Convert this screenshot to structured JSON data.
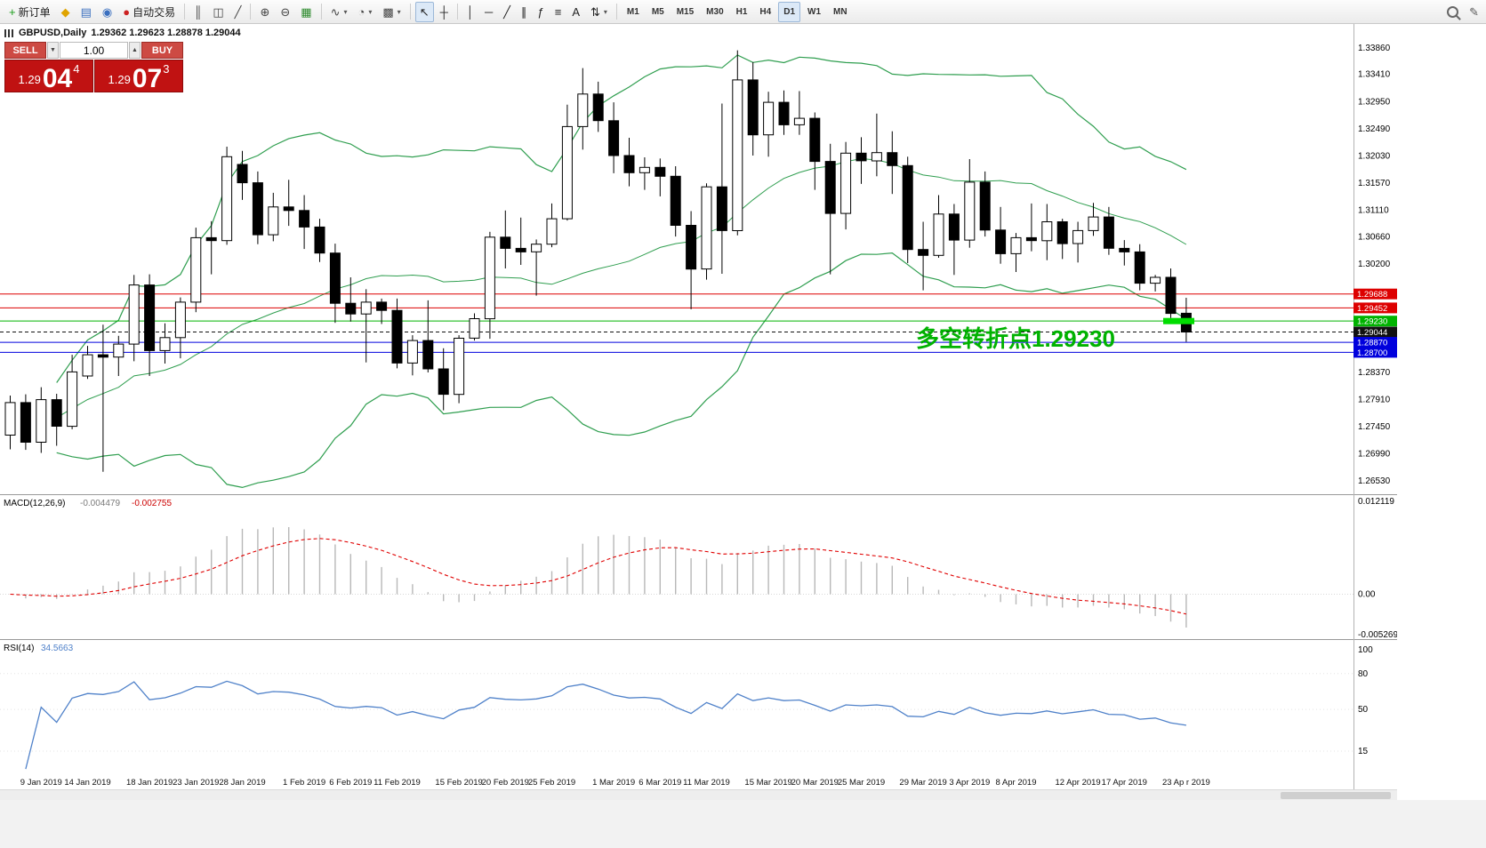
{
  "icons": {
    "spinner_down": "▼",
    "spinner_up": "▲",
    "dropdown": "▾",
    "pencil": "✎"
  },
  "chart": {
    "title_display": "GBPUSD,Daily",
    "ohlc_display": "1.29362 1.29623 1.28878 1.29044"
  },
  "trade_panel": {
    "sell_label": "SELL",
    "buy_label": "BUY",
    "volume": "1.00",
    "sell_price": {
      "base": "1.29",
      "pips": "04",
      "fraction": "4"
    },
    "buy_price": {
      "base": "1.29",
      "pips": "07",
      "fraction": "3"
    }
  },
  "annotation": {
    "text": "多空转折点1.29230",
    "color": "#00b200"
  },
  "toolbar": {
    "groups": [
      {
        "name": "trade",
        "items": [
          {
            "name": "new-order-button",
            "icon": "new-order-icon",
            "glyph": "+",
            "glyph_color": "#1a9c1a",
            "label": "新订单"
          },
          {
            "name": "new-chart-button",
            "icon": "new-chart-icon",
            "glyph": "◆",
            "glyph_color": "#e0a400"
          },
          {
            "name": "profiles-button",
            "icon": "profiles-icon",
            "glyph": "▤",
            "glyph_color": "#3a6fbf"
          },
          {
            "name": "alerts-button",
            "icon": "alert-icon",
            "glyph": "◉",
            "glyph_color": "#3a6fbf"
          },
          {
            "name": "autotrading-button",
            "icon": "autotrading-icon",
            "glyph": "●",
            "glyph_color": "#cc2222",
            "label": "自动交易"
          }
        ]
      },
      {
        "name": "chart-type",
        "items": [
          {
            "name": "bar-chart-button",
            "icon": "bar-chart-icon",
            "glyph": "║",
            "glyph_color": "#444"
          },
          {
            "name": "candlestick-button",
            "icon": "candlestick-icon",
            "glyph": "◫",
            "glyph_color": "#444"
          },
          {
            "name": "line-chart-button",
            "icon": "line-chart-icon",
            "glyph": "╱",
            "glyph_color": "#444"
          }
        ]
      },
      {
        "name": "zoom",
        "items": [
          {
            "name": "zoom-in-button",
            "icon": "zoom-in-icon",
            "glyph": "⊕",
            "glyph_color": "#444"
          },
          {
            "name": "zoom-out-button",
            "icon": "zoom-out-icon",
            "glyph": "⊖",
            "glyph_color": "#444"
          },
          {
            "name": "tile-windows-button",
            "icon": "tile-windows-icon",
            "glyph": "▦",
            "glyph_color": "#2d8a2d"
          }
        ]
      },
      {
        "name": "menus",
        "items": [
          {
            "name": "indicators-button",
            "icon": "indicators-icon",
            "glyph": "∿",
            "glyph_color": "#444",
            "dropdown": true
          },
          {
            "name": "periods-button",
            "icon": "clock-icon",
            "glyph": "◔",
            "glyph_color": "#444",
            "dropdown": true
          },
          {
            "name": "templates-button",
            "icon": "template-icon",
            "glyph": "▩",
            "glyph_color": "#444",
            "dropdown": true
          }
        ]
      },
      {
        "name": "cursor-tools",
        "items": [
          {
            "name": "cursor-button",
            "icon": "cursor-icon",
            "glyph": "↖",
            "glyph_color": "#222",
            "active": true
          },
          {
            "name": "crosshair-button",
            "icon": "crosshair-icon",
            "glyph": "┼",
            "glyph_color": "#222"
          }
        ]
      },
      {
        "name": "drawing-tools",
        "items": [
          {
            "name": "vertical-line-button",
            "icon": "vertical-line-icon",
            "glyph": "│",
            "glyph_color": "#222"
          },
          {
            "name": "horizontal-line-button",
            "icon": "horizontal-line-icon",
            "glyph": "─",
            "glyph_color": "#222"
          },
          {
            "name": "trendline-button",
            "icon": "trendline-icon",
            "glyph": "╱",
            "glyph_color": "#222"
          },
          {
            "name": "channel-button",
            "icon": "channel-icon",
            "glyph": "∥",
            "glyph_color": "#222"
          },
          {
            "name": "fibonacci-button",
            "icon": "fibonacci-icon",
            "glyph": "ƒ",
            "glyph_color": "#222"
          },
          {
            "name": "fibo-levels-button",
            "icon": "levels-icon",
            "glyph": "≡",
            "glyph_color": "#222"
          },
          {
            "name": "text-button",
            "icon": "text-icon",
            "glyph": "A",
            "glyph_color": "#222"
          },
          {
            "name": "arrows-button",
            "icon": "arrows-icon",
            "glyph": "⇅",
            "glyph_color": "#222",
            "dropdown": true
          }
        ]
      },
      {
        "name": "timeframes",
        "items": [
          {
            "name": "timeframe-m1-button",
            "label": "M1"
          },
          {
            "name": "timeframe-m5-button",
            "label": "M5"
          },
          {
            "name": "timeframe-m15-button",
            "label": "M15"
          },
          {
            "name": "timeframe-m30-button",
            "label": "M30"
          },
          {
            "name": "timeframe-h1-button",
            "label": "H1"
          },
          {
            "name": "timeframe-h4-button",
            "label": "H4"
          },
          {
            "name": "timeframe-d1-button",
            "label": "D1",
            "active": true
          },
          {
            "name": "timeframe-w1-button",
            "label": "W1"
          },
          {
            "name": "timeframe-mn-button",
            "label": "MN"
          }
        ]
      }
    ]
  },
  "chart_data": {
    "type": "candlestick",
    "symbol": "GBPUSD",
    "period": "Daily",
    "price_range": {
      "top": 1.34,
      "bottom": 1.263
    },
    "price_axis_labels": [
      "1.33860",
      "1.33410",
      "1.32950",
      "1.32490",
      "1.32030",
      "1.31570",
      "1.31110",
      "1.30660",
      "1.30200",
      "1.28370",
      "1.27910",
      "1.27450",
      "1.26990",
      "1.26530"
    ],
    "turning_marker_color": "#00dd00",
    "horizontal_levels": [
      {
        "value": "1.29688",
        "color": "#dd0000",
        "style": "solid"
      },
      {
        "value": "1.29452",
        "color": "#dd0000",
        "style": "solid"
      },
      {
        "value": "1.29230",
        "color": "#00b300",
        "style": "solid",
        "highlight_marker": true
      },
      {
        "value": "1.29044",
        "color": "#111111",
        "style": "dash",
        "is_current_price": true
      },
      {
        "value": "1.28870",
        "color": "#0000dd",
        "style": "solid"
      },
      {
        "value": "1.28700",
        "color": "#0000dd",
        "style": "solid"
      }
    ],
    "candles": [
      [
        1.273,
        1.2797,
        1.2706,
        1.2785
      ],
      [
        1.2785,
        1.2799,
        1.2705,
        1.2718
      ],
      [
        1.2718,
        1.2811,
        1.27,
        1.279
      ],
      [
        1.279,
        1.28,
        1.2712,
        1.2745
      ],
      [
        1.2745,
        1.2866,
        1.274,
        1.2837
      ],
      [
        1.283,
        1.2881,
        1.2825,
        1.2866
      ],
      [
        1.2866,
        1.2917,
        1.2668,
        1.2862
      ],
      [
        1.2862,
        1.2898,
        1.283,
        1.2884
      ],
      [
        1.2884,
        1.3001,
        1.2855,
        1.2984
      ],
      [
        1.2984,
        1.3002,
        1.283,
        1.2873
      ],
      [
        1.2873,
        1.2919,
        1.2851,
        1.2895
      ],
      [
        1.2895,
        1.2963,
        1.286,
        1.2955
      ],
      [
        1.2955,
        1.3081,
        1.2938,
        1.3064
      ],
      [
        1.3064,
        1.3092,
        1.3002,
        1.3059
      ],
      [
        1.3059,
        1.3218,
        1.3052,
        1.3201
      ],
      [
        1.3188,
        1.3211,
        1.3128,
        1.3157
      ],
      [
        1.3157,
        1.3176,
        1.3053,
        1.3069
      ],
      [
        1.3069,
        1.314,
        1.3058,
        1.3116
      ],
      [
        1.3116,
        1.3162,
        1.3084,
        1.311
      ],
      [
        1.311,
        1.3136,
        1.3045,
        1.3082
      ],
      [
        1.3082,
        1.3096,
        1.3023,
        1.3038
      ],
      [
        1.3038,
        1.3054,
        1.292,
        1.2953
      ],
      [
        1.2953,
        1.2997,
        1.2922,
        1.2935
      ],
      [
        1.2935,
        1.2977,
        1.2853,
        1.2955
      ],
      [
        1.2955,
        1.2961,
        1.2918,
        1.2941
      ],
      [
        1.2941,
        1.2961,
        1.2843,
        1.2852
      ],
      [
        1.2852,
        1.2899,
        1.2831,
        1.289
      ],
      [
        1.289,
        1.2958,
        1.2836,
        1.2842
      ],
      [
        1.2842,
        1.2877,
        1.2772,
        1.2799
      ],
      [
        1.2799,
        1.2899,
        1.2784,
        1.2894
      ],
      [
        1.2894,
        1.2936,
        1.289,
        1.2927
      ],
      [
        1.2927,
        1.3074,
        1.2893,
        1.3065
      ],
      [
        1.3065,
        1.311,
        1.3012,
        1.3046
      ],
      [
        1.3046,
        1.3098,
        1.3018,
        1.304
      ],
      [
        1.304,
        1.3061,
        1.2966,
        1.3053
      ],
      [
        1.3053,
        1.3122,
        1.3048,
        1.3096
      ],
      [
        1.3096,
        1.3289,
        1.3093,
        1.3252
      ],
      [
        1.3252,
        1.3351,
        1.3213,
        1.3307
      ],
      [
        1.3307,
        1.3328,
        1.3243,
        1.3262
      ],
      [
        1.3262,
        1.3293,
        1.3173,
        1.3203
      ],
      [
        1.3203,
        1.3233,
        1.3151,
        1.3174
      ],
      [
        1.3174,
        1.32,
        1.3145,
        1.3183
      ],
      [
        1.3183,
        1.3198,
        1.3134,
        1.3168
      ],
      [
        1.3168,
        1.3185,
        1.3066,
        1.3085
      ],
      [
        1.3085,
        1.3109,
        1.2943,
        1.3011
      ],
      [
        1.3011,
        1.3156,
        1.2993,
        1.315
      ],
      [
        1.315,
        1.3291,
        1.3003,
        1.3076
      ],
      [
        1.3076,
        1.3381,
        1.3068,
        1.3331
      ],
      [
        1.3331,
        1.3361,
        1.3203,
        1.3238
      ],
      [
        1.3238,
        1.3311,
        1.3201,
        1.3293
      ],
      [
        1.3293,
        1.3313,
        1.3238,
        1.3255
      ],
      [
        1.3255,
        1.3312,
        1.3238,
        1.3266
      ],
      [
        1.3266,
        1.3276,
        1.3145,
        1.3193
      ],
      [
        1.3193,
        1.3223,
        1.3002,
        1.3105
      ],
      [
        1.3105,
        1.3226,
        1.3078,
        1.3207
      ],
      [
        1.3207,
        1.3234,
        1.3155,
        1.3194
      ],
      [
        1.3194,
        1.3274,
        1.3168,
        1.3208
      ],
      [
        1.3208,
        1.3244,
        1.3138,
        1.3186
      ],
      [
        1.3186,
        1.3201,
        1.3021,
        1.3044
      ],
      [
        1.3044,
        1.3091,
        1.2975,
        1.3034
      ],
      [
        1.3034,
        1.3136,
        1.303,
        1.3104
      ],
      [
        1.3104,
        1.3121,
        1.3001,
        1.306
      ],
      [
        1.306,
        1.3197,
        1.3047,
        1.3158
      ],
      [
        1.3158,
        1.3176,
        1.3066,
        1.3077
      ],
      [
        1.3077,
        1.3116,
        1.302,
        1.3037
      ],
      [
        1.3037,
        1.3072,
        1.3006,
        1.3064
      ],
      [
        1.3064,
        1.3122,
        1.3041,
        1.3059
      ],
      [
        1.3059,
        1.3121,
        1.3026,
        1.3091
      ],
      [
        1.3091,
        1.3096,
        1.3028,
        1.3054
      ],
      [
        1.3054,
        1.3091,
        1.3022,
        1.3076
      ],
      [
        1.3076,
        1.3123,
        1.3067,
        1.3099
      ],
      [
        1.3099,
        1.3116,
        1.3035,
        1.3046
      ],
      [
        1.3046,
        1.306,
        1.3017,
        1.304
      ],
      [
        1.304,
        1.3053,
        1.2975,
        1.2987
      ],
      [
        1.2987,
        1.3001,
        1.2973,
        1.2997
      ],
      [
        1.2997,
        1.3012,
        1.2928,
        1.2936
      ],
      [
        1.29362,
        1.29623,
        1.28878,
        1.29044
      ]
    ],
    "date_labels": [
      [
        2,
        "9 Jan 2019"
      ],
      [
        5,
        "14 Jan 2019"
      ],
      [
        9,
        "18 Jan 2019"
      ],
      [
        12,
        "23 Jan 2019"
      ],
      [
        15,
        "28 Jan 2019"
      ],
      [
        19,
        "1 Feb 2019"
      ],
      [
        22,
        "6 Feb 2019"
      ],
      [
        25,
        "11 Feb 2019"
      ],
      [
        29,
        "15 Feb 2019"
      ],
      [
        32,
        "20 Feb 2019"
      ],
      [
        35,
        "25 Feb 2019"
      ],
      [
        39,
        "1 Mar 2019"
      ],
      [
        42,
        "6 Mar 2019"
      ],
      [
        45,
        "11 Mar 2019"
      ],
      [
        49,
        "15 Mar 2019"
      ],
      [
        52,
        "20 Mar 2019"
      ],
      [
        55,
        "25 Mar 2019"
      ],
      [
        59,
        "29 Mar 2019"
      ],
      [
        62,
        "3 Apr 2019"
      ],
      [
        65,
        "8 Apr 2019"
      ],
      [
        69,
        "12 Apr 2019"
      ],
      [
        72,
        "17 Apr 2019"
      ],
      [
        76,
        "23 Ap r 2019"
      ]
    ],
    "indicators": {
      "bollinger": {
        "period": 20,
        "deviations": 2,
        "color": "#2f9e4f"
      },
      "macd": {
        "name": "MACD(12,26,9)",
        "value_main": "-0.004479",
        "value_signal": "-0.002755",
        "axis_labels": [
          "0.012119",
          "0.00",
          "-0.005269"
        ],
        "histogram_color": "#b8b8b8",
        "signal_color": "#e00000"
      },
      "rsi": {
        "name": "RSI(14)",
        "value": "34.5663",
        "axis_labels": [
          "100",
          "80",
          "50",
          "15"
        ],
        "color": "#4f81c9"
      }
    }
  }
}
